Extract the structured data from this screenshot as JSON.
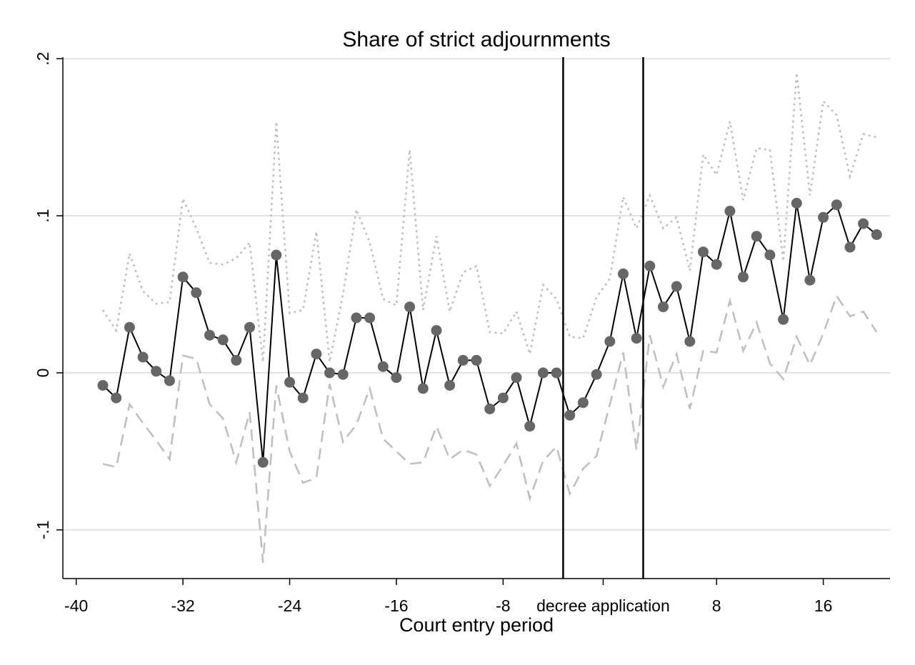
{
  "chart_data": {
    "type": "line",
    "title": "Share of strict adjournments",
    "xlabel": "Court entry period",
    "ylabel": "",
    "xlim": [
      -41,
      21
    ],
    "ylim": [
      -0.131,
      0.201
    ],
    "grid": true,
    "xticks": [
      {
        "value": -40,
        "label": "-40"
      },
      {
        "value": -32,
        "label": "-32"
      },
      {
        "value": -24,
        "label": "-24"
      },
      {
        "value": -16,
        "label": "-16"
      },
      {
        "value": -8,
        "label": "-8"
      },
      {
        "value": 8,
        "label": "8"
      },
      {
        "value": 16,
        "label": "16"
      }
    ],
    "yticks": [
      {
        "value": 0.2,
        "label": ".2"
      },
      {
        "value": 0.1,
        "label": ".1"
      },
      {
        "value": 0,
        "label": "0"
      },
      {
        "value": -0.1,
        "label": "-.1"
      }
    ],
    "vlines": [
      -3.5,
      2.5
    ],
    "vline_label": "decree application",
    "x": [
      -38,
      -37,
      -36,
      -35,
      -34,
      -33,
      -32,
      -31,
      -30,
      -29,
      -28,
      -27,
      -26,
      -25,
      -24,
      -23,
      -22,
      -21,
      -20,
      -19,
      -18,
      -17,
      -16,
      -15,
      -14,
      -13,
      -12,
      -11,
      -10,
      -9,
      -8,
      -7,
      -6,
      -5,
      -4,
      -3,
      -2,
      -1,
      0,
      1,
      2,
      3,
      4,
      5,
      6,
      7,
      8,
      9,
      10,
      11,
      12,
      13,
      14,
      15,
      16,
      17,
      18,
      19,
      20
    ],
    "series": [
      {
        "role": "estimate",
        "color": "#000000",
        "marker_color": "#666666",
        "values": [
          -0.008,
          -0.016,
          0.029,
          0.01,
          0.001,
          -0.005,
          0.061,
          0.051,
          0.024,
          0.021,
          0.008,
          0.029,
          -0.057,
          0.075,
          -0.006,
          -0.016,
          0.012,
          0.0,
          -0.001,
          0.035,
          0.035,
          0.004,
          -0.003,
          0.042,
          -0.01,
          0.027,
          -0.008,
          0.008,
          0.008,
          -0.023,
          -0.016,
          -0.003,
          -0.034,
          0.0,
          0.0,
          -0.027,
          -0.019,
          -0.001,
          0.02,
          0.063,
          0.022,
          0.068,
          0.042,
          0.055,
          0.02,
          0.077,
          0.069,
          0.103,
          0.061,
          0.087,
          0.075,
          0.034,
          0.108,
          0.059,
          0.099,
          0.107,
          0.08,
          0.095,
          0.088
        ]
      },
      {
        "role": "upper",
        "style": "dotted",
        "color": "#c0c0c0",
        "values": [
          0.04,
          0.027,
          0.076,
          0.052,
          0.044,
          0.045,
          0.111,
          0.092,
          0.07,
          0.069,
          0.073,
          0.083,
          0.007,
          0.16,
          0.038,
          0.04,
          0.09,
          0.007,
          0.05,
          0.104,
          0.083,
          0.047,
          0.043,
          0.142,
          0.04,
          0.087,
          0.039,
          0.064,
          0.068,
          0.026,
          0.025,
          0.039,
          0.012,
          0.056,
          0.047,
          0.023,
          0.022,
          0.048,
          0.06,
          0.112,
          0.092,
          0.113,
          0.092,
          0.099,
          0.065,
          0.139,
          0.126,
          0.16,
          0.11,
          0.143,
          0.142,
          0.071,
          0.191,
          0.113,
          0.173,
          0.164,
          0.125,
          0.152,
          0.15
        ]
      },
      {
        "role": "lower",
        "style": "dashed",
        "color": "#c0c0c0",
        "values": [
          -0.058,
          -0.06,
          -0.02,
          -0.032,
          -0.043,
          -0.055,
          0.011,
          0.009,
          -0.02,
          -0.029,
          -0.057,
          -0.025,
          -0.121,
          -0.008,
          -0.05,
          -0.07,
          -0.067,
          -0.007,
          -0.044,
          -0.033,
          -0.01,
          -0.042,
          -0.05,
          -0.058,
          -0.057,
          -0.034,
          -0.055,
          -0.049,
          -0.052,
          -0.072,
          -0.059,
          -0.045,
          -0.08,
          -0.056,
          -0.047,
          -0.077,
          -0.061,
          -0.053,
          -0.02,
          0.013,
          -0.049,
          0.024,
          -0.009,
          0.012,
          -0.023,
          0.014,
          0.013,
          0.046,
          0.014,
          0.032,
          0.006,
          -0.004,
          0.023,
          0.005,
          0.025,
          0.049,
          0.036,
          0.039,
          0.026
        ]
      }
    ]
  }
}
